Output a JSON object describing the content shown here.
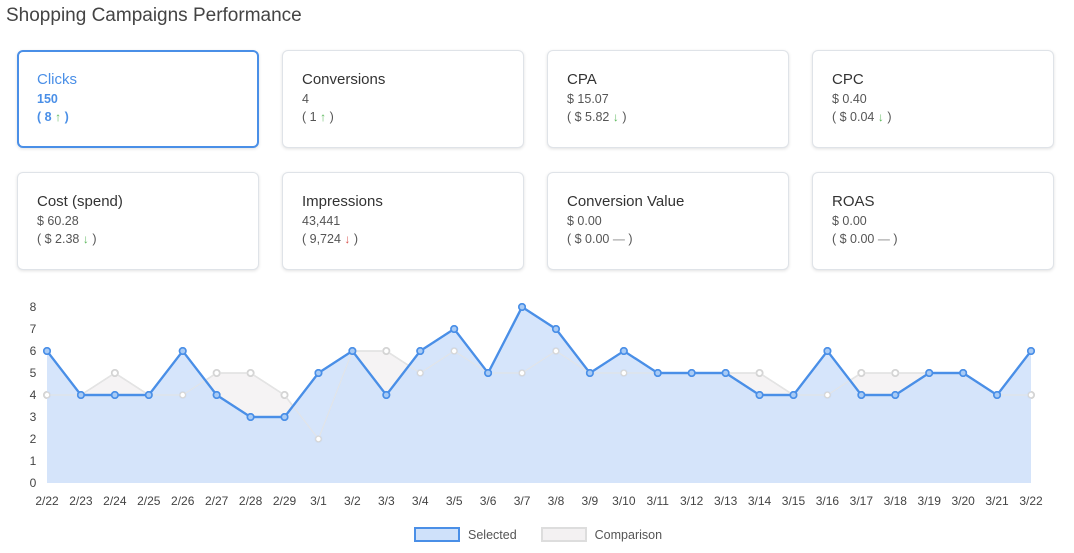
{
  "page": {
    "title": "Shopping Campaigns Performance"
  },
  "cards": [
    {
      "label": "Clicks",
      "value": "150",
      "delta_text": "( 8",
      "delta_close": ")",
      "arrow": "up",
      "selected": true
    },
    {
      "label": "Conversions",
      "value": "4",
      "delta_text": "( 1",
      "delta_close": ")",
      "arrow": "up",
      "selected": false
    },
    {
      "label": "CPA",
      "value": "$ 15.07",
      "delta_text": "( $ 5.82",
      "delta_close": ")",
      "arrow": "down-good",
      "selected": false
    },
    {
      "label": "CPC",
      "value": "$ 0.40",
      "delta_text": "( $ 0.04",
      "delta_close": ")",
      "arrow": "down-good",
      "selected": false
    },
    {
      "label": "Cost (spend)",
      "value": "$ 60.28",
      "delta_text": "( $ 2.38",
      "delta_close": ")",
      "arrow": "down-good",
      "selected": false
    },
    {
      "label": "Impressions",
      "value": "43,441",
      "delta_text": "( 9,724",
      "delta_close": ")",
      "arrow": "down-bad",
      "selected": false
    },
    {
      "label": "Conversion Value",
      "value": "$ 0.00",
      "delta_text": "( $ 0.00",
      "delta_close": ")",
      "arrow": "flat",
      "selected": false
    },
    {
      "label": "ROAS",
      "value": "$ 0.00",
      "delta_text": "( $ 0.00",
      "delta_close": ")",
      "arrow": "flat",
      "selected": false
    }
  ],
  "colors": {
    "selected_line": "#4a8fe7",
    "selected_fill": "#cfe1fa",
    "comparison_line": "#d9d9d9",
    "comparison_fill": "#f3f1f2",
    "arrow_up": "#5cb85c",
    "arrow_down_bad": "#d9534f"
  },
  "chart_data": {
    "type": "area",
    "x": [
      "2/22",
      "2/23",
      "2/24",
      "2/25",
      "2/26",
      "2/27",
      "2/28",
      "2/29",
      "3/1",
      "3/2",
      "3/3",
      "3/4",
      "3/5",
      "3/6",
      "3/7",
      "3/8",
      "3/9",
      "3/10",
      "3/11",
      "3/12",
      "3/13",
      "3/14",
      "3/15",
      "3/16",
      "3/17",
      "3/18",
      "3/19",
      "3/20",
      "3/21",
      "3/22"
    ],
    "ylim": [
      0,
      8
    ],
    "yticks": [
      0,
      1,
      2,
      3,
      4,
      5,
      6,
      7,
      8
    ],
    "series": [
      {
        "name": "Selected",
        "values": [
          6,
          4,
          4,
          4,
          6,
          4,
          3,
          3,
          5,
          6,
          4,
          6,
          7,
          5,
          8,
          7,
          5,
          6,
          5,
          5,
          5,
          4,
          4,
          6,
          4,
          4,
          5,
          5,
          4,
          6
        ]
      },
      {
        "name": "Comparison",
        "values": [
          4,
          4,
          5,
          4,
          4,
          5,
          5,
          4,
          2,
          6,
          6,
          5,
          6,
          5,
          5,
          6,
          5,
          5,
          5,
          5,
          5,
          5,
          4,
          4,
          5,
          5,
          5,
          5,
          4,
          4
        ]
      }
    ],
    "legend_position": "bottom-center",
    "grid": false
  }
}
